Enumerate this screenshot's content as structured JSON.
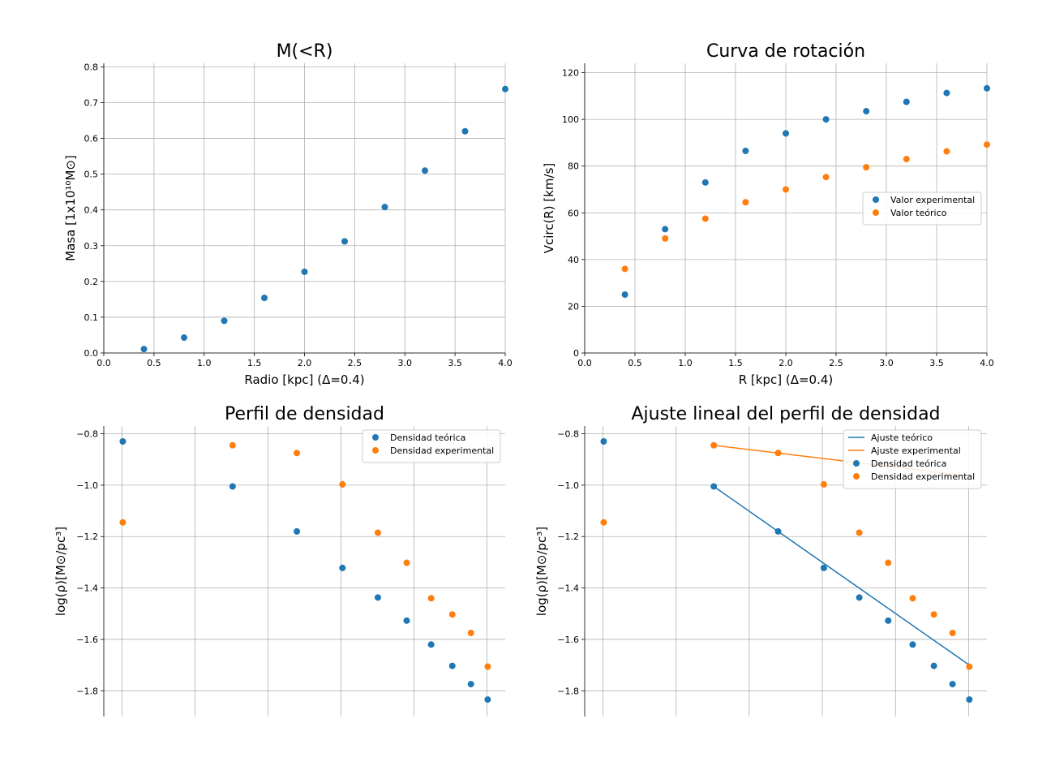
{
  "colors": {
    "blue": "#1f77b4",
    "orange": "#ff7f0e",
    "grid": "#b0b0b0"
  },
  "chart_data": [
    {
      "type": "scatter",
      "title": "M(<R)",
      "xlabel": "Radio [kpc] (Δ=0.4)",
      "ylabel": "Masa [1x10¹⁰M⊙]",
      "xlim": [
        0,
        4.0
      ],
      "ylim": [
        0,
        0.81
      ],
      "grid": true,
      "xticks": [
        "0.0",
        "0.5",
        "1.0",
        "1.5",
        "2.0",
        "2.5",
        "3.0",
        "3.5",
        "4.0"
      ],
      "yticks": [
        "0.0",
        "0.1",
        "0.2",
        "0.3",
        "0.4",
        "0.5",
        "0.6",
        "0.7",
        "0.8"
      ],
      "series": [
        {
          "color": "blue",
          "x": [
            0.4,
            0.8,
            1.2,
            1.6,
            2.0,
            2.4,
            2.8,
            3.2,
            3.6,
            4.0
          ],
          "y": [
            0.011,
            0.043,
            0.09,
            0.154,
            0.227,
            0.312,
            0.408,
            0.51,
            0.62,
            0.738
          ]
        }
      ]
    },
    {
      "type": "scatter",
      "title": "Curva de rotación",
      "xlabel": "R [kpc] (Δ=0.4)",
      "ylabel": "Vcirc(R) [km/s]",
      "xlim": [
        0,
        4.0
      ],
      "ylim": [
        0,
        124
      ],
      "grid": true,
      "legend": "right",
      "xticks": [
        "0.0",
        "0.5",
        "1.0",
        "1.5",
        "2.0",
        "2.5",
        "3.0",
        "3.5",
        "4.0"
      ],
      "yticks": [
        "0",
        "20",
        "40",
        "60",
        "80",
        "100",
        "120"
      ],
      "series": [
        {
          "name": "Valor experimental",
          "color": "blue",
          "x": [
            0.4,
            0.8,
            1.2,
            1.6,
            2.0,
            2.4,
            2.8,
            3.2,
            3.6,
            4.0
          ],
          "y": [
            25,
            53,
            73,
            86.5,
            94,
            100,
            103.5,
            107.5,
            111.3,
            113.3
          ]
        },
        {
          "name": "Valor teórico",
          "color": "orange",
          "x": [
            0.4,
            0.8,
            1.2,
            1.6,
            2.0,
            2.4,
            2.8,
            3.2,
            3.6,
            4.0
          ],
          "y": [
            36,
            49,
            57.5,
            64.5,
            70,
            75.3,
            79.5,
            83,
            86.3,
            89.2
          ]
        }
      ]
    },
    {
      "type": "scatter",
      "title": "Perfil de densidad",
      "xlabel": "",
      "ylabel": "log(ρ)[M⊙/pc³]",
      "xlim": [
        -0.45,
        0.65
      ],
      "ylim": [
        -1.9,
        -0.77
      ],
      "grid": true,
      "legend": "top-right",
      "xgrid": [
        -0.4,
        -0.2,
        0.0,
        0.2,
        0.4,
        0.6
      ],
      "yticks": [
        "−0.8",
        "−1.0",
        "−1.2",
        "−1.4",
        "−1.6",
        "−1.8"
      ],
      "series": [
        {
          "name": "Densidad teórica",
          "color": "blue",
          "x": [
            -0.398,
            -0.097,
            0.079,
            0.204,
            0.301,
            0.38,
            0.447,
            0.505,
            0.556,
            0.602
          ],
          "y": [
            -0.83,
            -1.005,
            -1.18,
            -1.322,
            -1.437,
            -1.527,
            -1.62,
            -1.703,
            -1.774,
            -1.834
          ]
        },
        {
          "name": "Densidad experimental",
          "color": "orange",
          "x": [
            -0.398,
            -0.097,
            0.079,
            0.204,
            0.301,
            0.38,
            0.447,
            0.505,
            0.556,
            0.602
          ],
          "y": [
            -1.145,
            -0.845,
            -0.875,
            -0.997,
            -1.185,
            -1.302,
            -1.44,
            -1.503,
            -1.575,
            -1.706
          ]
        }
      ]
    },
    {
      "type": "scatter",
      "title": "Ajuste lineal del perfil de densidad",
      "xlabel": "",
      "ylabel": "log(ρ)[M⊙/pc³]",
      "xlim": [
        -0.45,
        0.65
      ],
      "ylim": [
        -1.9,
        -0.77
      ],
      "grid": true,
      "legend": "top-right",
      "xgrid": [
        -0.4,
        -0.2,
        0.0,
        0.2,
        0.4,
        0.6
      ],
      "yticks": [
        "−0.8",
        "−1.0",
        "−1.2",
        "−1.4",
        "−1.6",
        "−1.8"
      ],
      "lines": [
        {
          "name": "Ajuste teórico",
          "color": "blue",
          "x": [
            -0.097,
            0.602
          ],
          "y": [
            -1.005,
            -1.7
          ]
        },
        {
          "name": "Ajuste experimental",
          "color": "orange",
          "x": [
            -0.097,
            0.602
          ],
          "y": [
            -0.845,
            -0.965
          ]
        }
      ],
      "series": [
        {
          "name": "Densidad teórica",
          "color": "blue",
          "x": [
            -0.398,
            -0.097,
            0.079,
            0.204,
            0.301,
            0.38,
            0.447,
            0.505,
            0.556,
            0.602
          ],
          "y": [
            -0.83,
            -1.005,
            -1.18,
            -1.322,
            -1.437,
            -1.527,
            -1.62,
            -1.703,
            -1.774,
            -1.834
          ]
        },
        {
          "name": "Densidad experimental",
          "color": "orange",
          "x": [
            -0.398,
            -0.097,
            0.079,
            0.204,
            0.301,
            0.38,
            0.447,
            0.505,
            0.556,
            0.602
          ],
          "y": [
            -1.145,
            -0.845,
            -0.875,
            -0.997,
            -1.185,
            -1.302,
            -1.44,
            -1.503,
            -1.575,
            -1.706
          ]
        }
      ]
    }
  ]
}
